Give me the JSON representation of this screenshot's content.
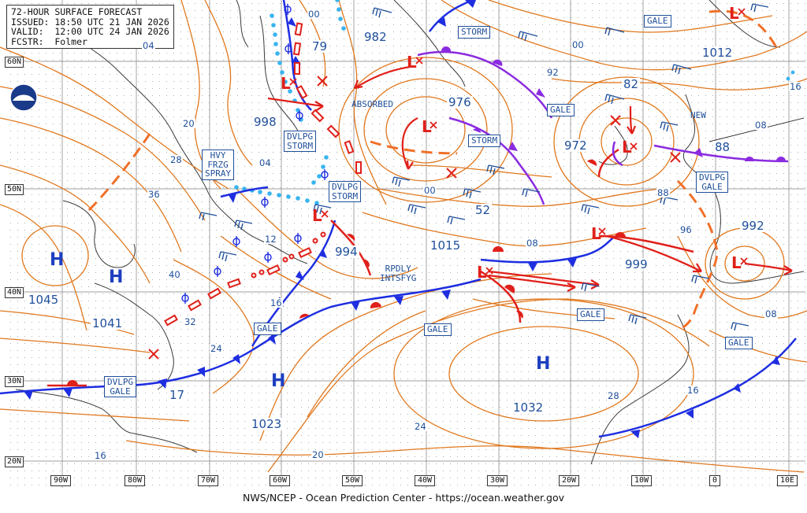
{
  "header": {
    "line1": "72-HOUR SURFACE FORECAST",
    "line2": "ISSUED: 18:50 UTC 21 JAN 2026",
    "line3": "VALID:  12:00 UTC 24 JAN 2026",
    "line4": "FCSTR:  Folmer"
  },
  "credit": "NWS/NCEP - Ocean Prediction Center - https://ocean.weather.gov",
  "logo": "noaa-logo",
  "longitudes": [
    "90W",
    "80W",
    "70W",
    "60W",
    "50W",
    "40W",
    "30W",
    "20W",
    "10W",
    "0",
    "10E"
  ],
  "latitudes": [
    "60N",
    "50N",
    "40N",
    "30N",
    "20N"
  ],
  "warnings": {
    "gale_1": "GALE",
    "gale_2": "GALE",
    "gale_3": "GALE",
    "gale_4": "GALE",
    "gale_5": "GALE",
    "gale_6": "GALE",
    "storm_1": "STORM",
    "storm_2": "STORM",
    "dvlpg_storm_1": "DVLPG\nSTORM",
    "dvlpg_storm_2": "DVLPG\nSTORM",
    "dvlpg_gale_1": "DVLPG\nGALE",
    "dvlpg_gale_2": "DVLPG\nGALE",
    "hvy_frzg_spray": "HVY\nFRZG\nSPRAY"
  },
  "annotations": {
    "absorbed": "ABSORBED",
    "new": "NEW",
    "rpdly": "RPDLY\nINTSFYG"
  },
  "pressure_centers": {
    "h_letter": "H",
    "l_letter": "L",
    "p_1045": "1045",
    "p_1041": "1041",
    "p_1023": "1023",
    "p_1032": "1032",
    "p_1015": "1015",
    "p_1012": "1012",
    "p_998": "998",
    "p_994": "994",
    "p_976": "976",
    "p_972": "972",
    "p_982": "982",
    "p_992": "992",
    "p_999": "999",
    "p_979": "79",
    "p_982b": "82",
    "p_988": "88",
    "p_952": "52",
    "p_1017": "17"
  },
  "isobar_labels": {
    "v00a": "00",
    "v00b": "00",
    "v00c": "00",
    "v92": "92",
    "v04a": "04",
    "v04b": "04",
    "v20a": "20",
    "v20b": "20",
    "v28a": "28",
    "v28b": "28",
    "v36": "36",
    "v40": "40",
    "v32": "32",
    "v24a": "24",
    "v24b": "24",
    "v16a": "16",
    "v16b": "16",
    "v16c": "16",
    "v16d": "16",
    "v12": "12",
    "v08a": "08",
    "v08b": "08",
    "v08c": "08",
    "v88": "88",
    "v96": "96"
  },
  "colors": {
    "isobar": "#e0781e",
    "grid": "#555555",
    "coast": "#3a3a3a",
    "cold_front": "#1e2ee0",
    "warm_front": "#e0201a",
    "occluded_front": "#8a2be0",
    "trough": "#f07028",
    "ice_edge": "#38b4f0",
    "low_marker": "#e0201a",
    "high_marker": "#1e3fc0",
    "label_text": "#1f4f9a"
  }
}
